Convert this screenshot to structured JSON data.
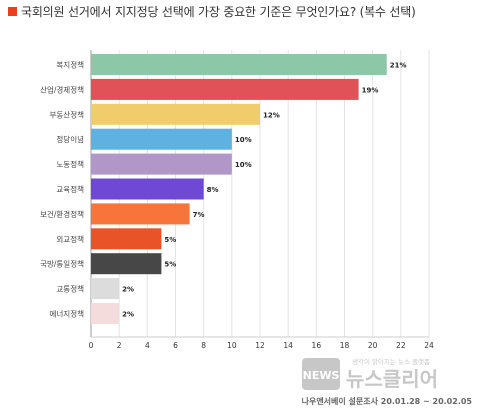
{
  "title": "국회의원 선거에서 지지정당 선택에 가장 중요한 기준은 무엇인가요? (복수 선택)",
  "colors": {
    "title_marker": "#e8401c"
  },
  "chart_data": {
    "type": "bar",
    "orientation": "horizontal",
    "categories": [
      "복지정책",
      "산업/경제정책",
      "부동산정책",
      "정당이념",
      "노동정책",
      "교육정책",
      "보건/환경정책",
      "외교정책",
      "국방/통일정책",
      "교통정책",
      "에너지정책"
    ],
    "values": [
      21,
      19,
      12,
      10,
      10,
      8,
      7,
      5,
      5,
      2,
      2
    ],
    "value_labels": [
      "21%",
      "19%",
      "12%",
      "10%",
      "10%",
      "8%",
      "7%",
      "5%",
      "5%",
      "2%",
      "2%"
    ],
    "colors": [
      "#8cc8a8",
      "#e05258",
      "#f0cd6a",
      "#5eb1e0",
      "#b097c8",
      "#6f48d6",
      "#f7743a",
      "#e85428",
      "#474747",
      "#dcdcdc",
      "#f5dcdc"
    ],
    "xlim": [
      0,
      24
    ],
    "xticks": [
      0,
      2,
      4,
      6,
      8,
      10,
      12,
      14,
      16,
      18,
      20,
      22,
      24
    ],
    "grid": true
  },
  "watermark": {
    "logo_text": "NEWS",
    "brand_text": "뉴스클리어",
    "tagline": "생각이 맑아지는 뉴스 플랫폼"
  },
  "source": "나우앤서베이 설문조사 20.01.28 ~ 20.02.05"
}
